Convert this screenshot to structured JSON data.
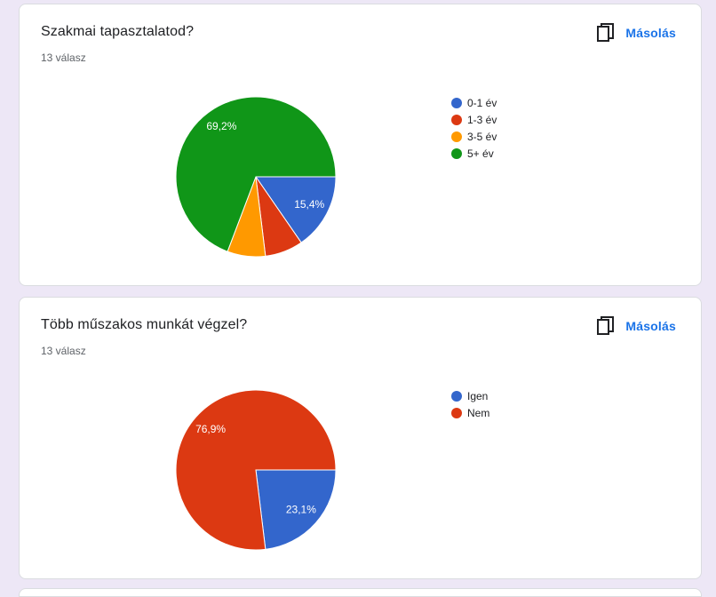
{
  "copy_label": "Másolás",
  "chart_data": [
    {
      "type": "pie",
      "title": "Szakmai tapasztalatod?",
      "responses": "13 válasz",
      "categories": [
        "0-1 év",
        "1-3 év",
        "3-5 év",
        "5+ év"
      ],
      "values": [
        2,
        1,
        1,
        9
      ],
      "percent_labels": [
        "15,4%",
        "",
        "",
        "69,2%"
      ],
      "colors": [
        "#3366cc",
        "#dc3912",
        "#ff9900",
        "#109618"
      ],
      "legend_position": "right"
    },
    {
      "type": "pie",
      "title": "Több műszakos munkát végzel?",
      "responses": "13 válasz",
      "categories": [
        "Igen",
        "Nem"
      ],
      "values": [
        3,
        10
      ],
      "percent_labels": [
        "23,1%",
        "76,9%"
      ],
      "colors": [
        "#3366cc",
        "#dc3912"
      ],
      "legend_position": "right"
    }
  ]
}
